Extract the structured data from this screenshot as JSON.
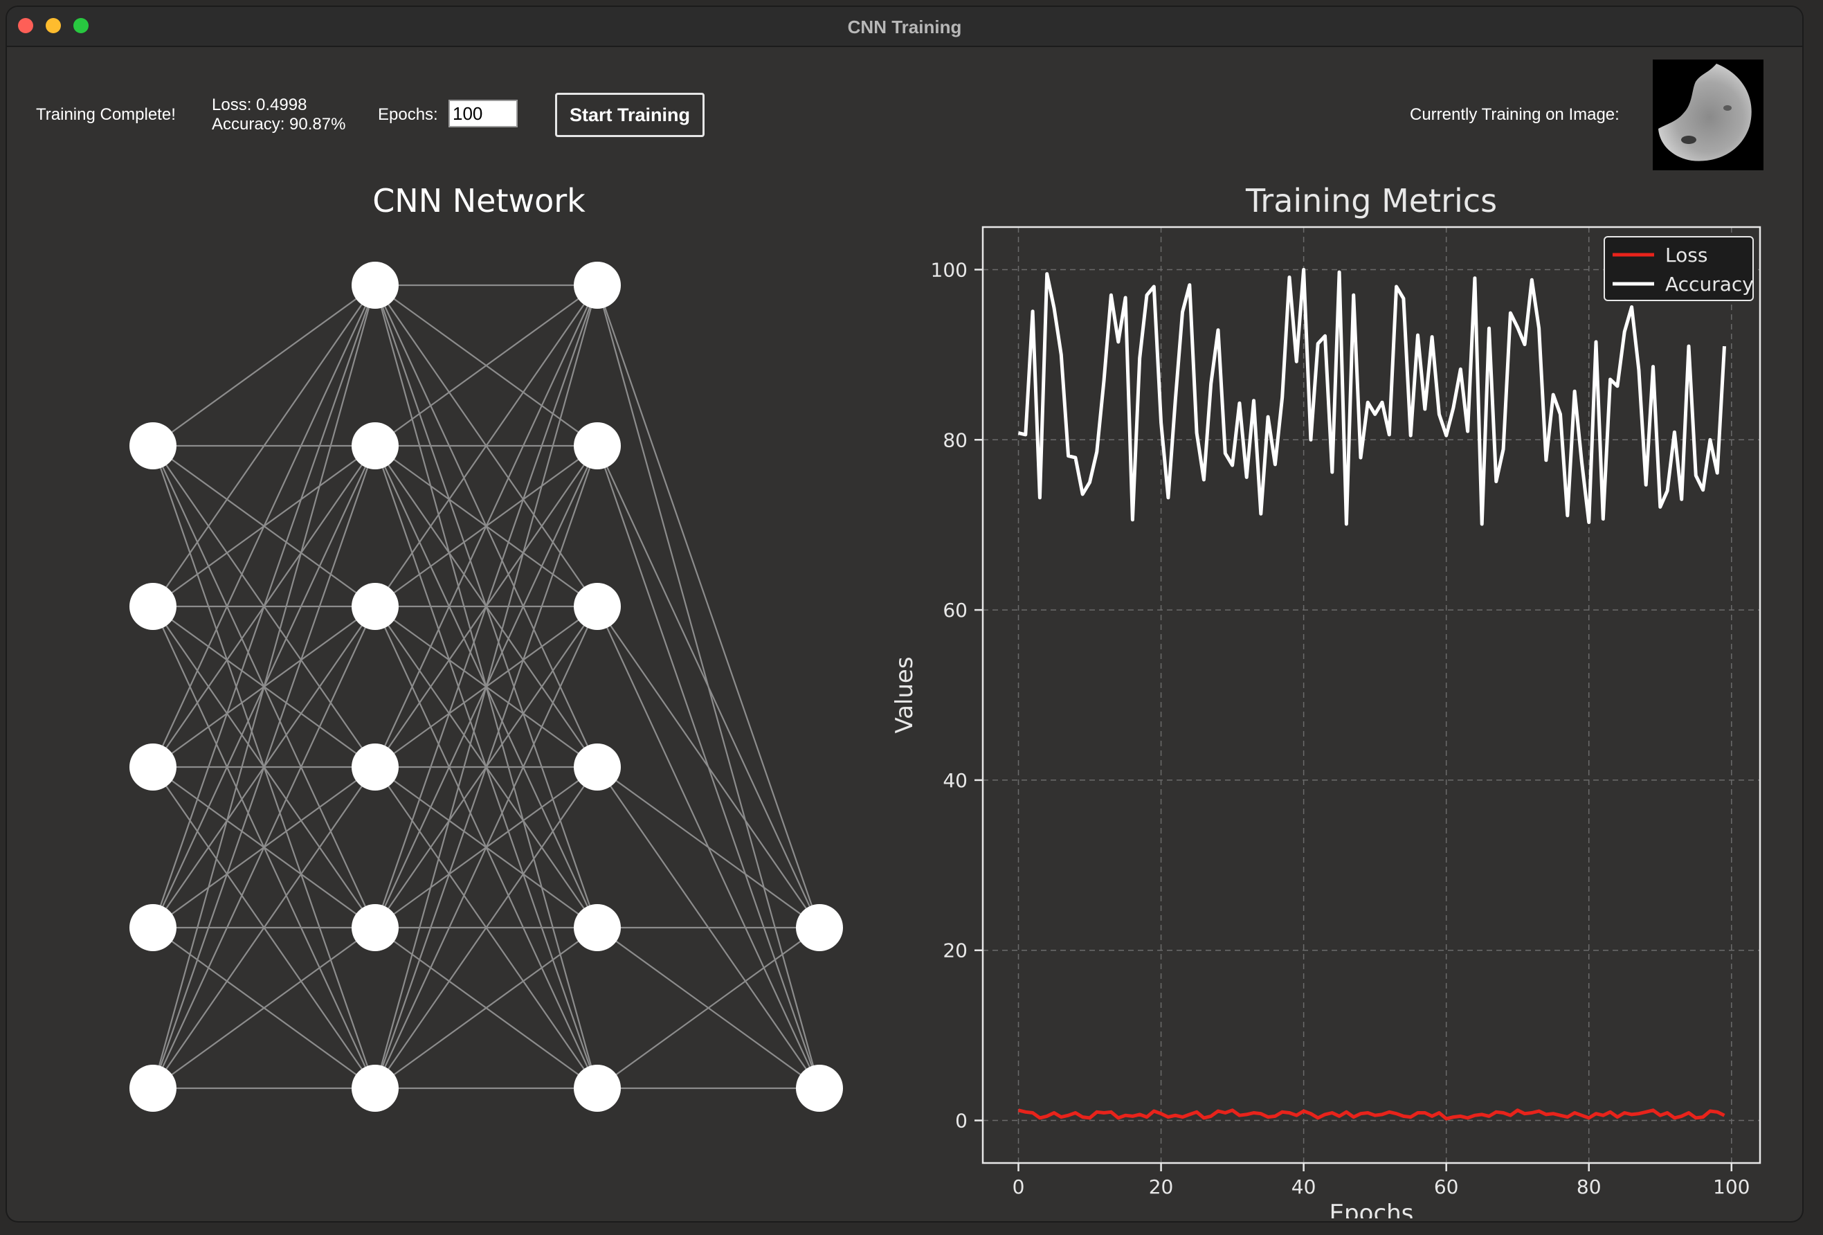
{
  "window": {
    "title": "CNN Training"
  },
  "status": {
    "message": "Training Complete!",
    "loss": "Loss: 0.4998",
    "accuracy": "Accuracy: 90.87%"
  },
  "controls": {
    "epochs_label": "Epochs:",
    "epochs_value": "100",
    "start_label": "Start Training"
  },
  "image_panel": {
    "label": "Currently Training on Image:"
  },
  "network": {
    "title": "CNN Network",
    "layers": [
      5,
      6,
      6,
      2
    ]
  },
  "colors": {
    "background": "#323130",
    "loss": "#e8231b",
    "accuracy": "#ffffff",
    "edges": "#8c8c8c"
  },
  "chart_data": {
    "type": "line",
    "title": "Training Metrics",
    "xlabel": "Epochs",
    "ylabel": "Values",
    "xlim": [
      -5,
      104
    ],
    "ylim": [
      -5,
      105
    ],
    "xticks": [
      0,
      20,
      40,
      60,
      80,
      100
    ],
    "yticks": [
      0,
      20,
      40,
      60,
      80,
      100
    ],
    "grid": true,
    "legend_position": "top-right",
    "x": [
      0,
      1,
      2,
      3,
      4,
      5,
      6,
      7,
      8,
      9,
      10,
      11,
      12,
      13,
      14,
      15,
      16,
      17,
      18,
      19,
      20,
      21,
      22,
      23,
      24,
      25,
      26,
      27,
      28,
      29,
      30,
      31,
      32,
      33,
      34,
      35,
      36,
      37,
      38,
      39,
      40,
      41,
      42,
      43,
      44,
      45,
      46,
      47,
      48,
      49,
      50,
      51,
      52,
      53,
      54,
      55,
      56,
      57,
      58,
      59,
      60,
      61,
      62,
      63,
      64,
      65,
      66,
      67,
      68,
      69,
      70,
      71,
      72,
      73,
      74,
      75,
      76,
      77,
      78,
      79,
      80,
      81,
      82,
      83,
      84,
      85,
      86,
      87,
      88,
      89,
      90,
      91,
      92,
      93,
      94,
      95,
      96,
      97,
      98,
      99
    ],
    "series": [
      {
        "name": "Loss",
        "color": "#e8231b",
        "values": [
          1.2,
          1.0,
          0.9,
          0.3,
          0.5,
          0.9,
          0.4,
          0.6,
          0.9,
          0.4,
          0.3,
          1.0,
          0.9,
          1.0,
          0.3,
          0.6,
          0.5,
          0.7,
          0.4,
          1.1,
          0.8,
          0.4,
          0.6,
          0.4,
          0.7,
          1.0,
          0.3,
          0.5,
          1.1,
          0.9,
          1.2,
          0.6,
          0.7,
          0.9,
          0.8,
          0.4,
          0.5,
          1.0,
          0.9,
          0.6,
          1.1,
          0.8,
          0.3,
          0.7,
          0.9,
          0.5,
          1.0,
          0.4,
          0.8,
          0.9,
          0.6,
          0.7,
          1.0,
          0.8,
          0.5,
          0.4,
          0.9,
          0.9,
          0.5,
          0.9,
          0.2,
          0.4,
          0.5,
          0.3,
          0.6,
          0.7,
          0.5,
          1.0,
          0.9,
          0.6,
          1.2,
          0.8,
          0.9,
          1.1,
          0.7,
          0.8,
          0.6,
          0.4,
          0.9,
          0.6,
          0.3,
          0.8,
          0.6,
          1.0,
          0.4,
          0.9,
          0.7,
          0.8,
          1.0,
          1.2,
          0.6,
          0.9,
          0.3,
          0.5,
          0.9,
          0.3,
          0.4,
          1.1,
          1.0,
          0.6
        ]
      },
      {
        "name": "Accuracy",
        "color": "#ffffff",
        "values": [
          80.8,
          80.6,
          95.1,
          73.2,
          99.5,
          95.5,
          90.0,
          78.1,
          77.9,
          73.6,
          75.0,
          78.6,
          87.0,
          97.0,
          91.5,
          96.7,
          70.6,
          89.6,
          97.0,
          98.0,
          82.0,
          73.2,
          84.6,
          95.0,
          98.2,
          80.8,
          75.3,
          86.6,
          92.9,
          78.4,
          77.0,
          84.3,
          75.6,
          84.6,
          71.3,
          82.7,
          77.1,
          85.0,
          99.1,
          89.2,
          100.0,
          80.0,
          91.3,
          92.2,
          76.2,
          99.7,
          70.1,
          97.0,
          77.9,
          84.4,
          83.0,
          84.4,
          80.6,
          98.0,
          96.6,
          80.5,
          92.3,
          83.6,
          92.1,
          83.0,
          80.5,
          83.8,
          88.3,
          81.0,
          99.0,
          70.1,
          93.1,
          75.1,
          78.9,
          94.9,
          93.2,
          91.2,
          98.8,
          93.1,
          77.6,
          85.3,
          83.0,
          71.1,
          85.7,
          77.4,
          70.3,
          91.5,
          70.7,
          87.1,
          86.3,
          92.7,
          95.6,
          88.2,
          74.7,
          88.6,
          72.1,
          74.0,
          80.9,
          73.0,
          91.0,
          75.8,
          74.1,
          80.0,
          76.1,
          91.0
        ]
      }
    ]
  }
}
